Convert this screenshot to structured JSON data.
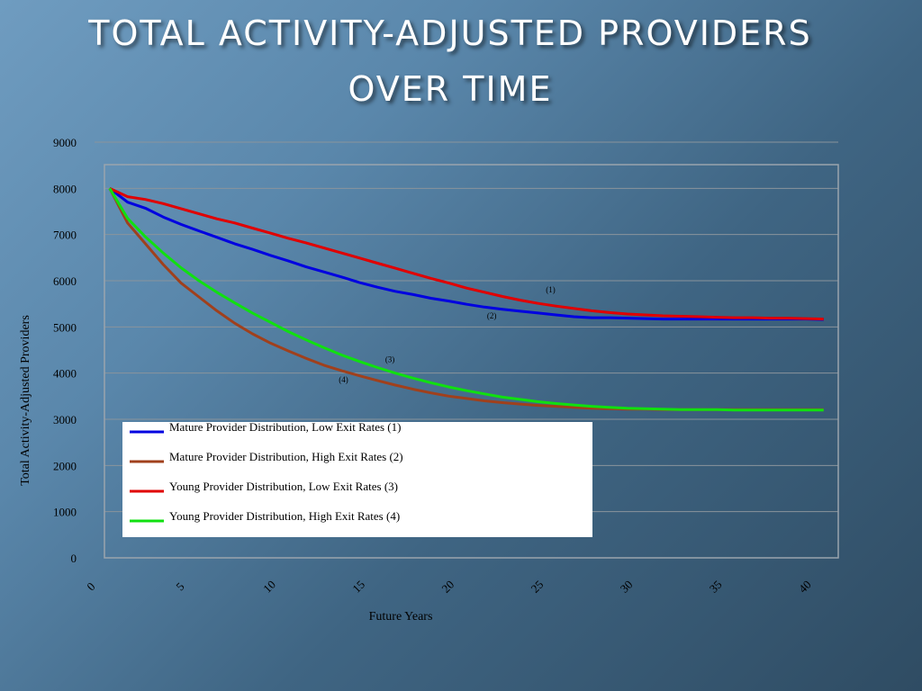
{
  "slide": {
    "title_line1": "TOTAL ACTIVITY-ADJUSTED PROVIDERS",
    "title_line2": "OVER TIME"
  },
  "chart_data": {
    "type": "line",
    "title": "TOTAL ACTIVITY-ADJUSTED PROVIDERS OVER TIME",
    "xlabel": "Future Years",
    "ylabel": "Total Activity-Adjusted Providers",
    "xlim": [
      0,
      41
    ],
    "ylim": [
      0,
      9000
    ],
    "x_ticks": [
      0,
      5,
      10,
      15,
      20,
      25,
      30,
      35,
      40
    ],
    "y_ticks": [
      0,
      1000,
      2000,
      3000,
      4000,
      5000,
      6000,
      7000,
      8000,
      9000
    ],
    "grid": "horizontal",
    "legend_placement": "bottom-left",
    "x": [
      1,
      2,
      3,
      4,
      5,
      6,
      7,
      8,
      9,
      10,
      11,
      12,
      13,
      14,
      15,
      16,
      17,
      18,
      19,
      20,
      21,
      22,
      23,
      24,
      25,
      26,
      27,
      28,
      29,
      30,
      31,
      32,
      33,
      34,
      35,
      36,
      37,
      38,
      39,
      40,
      41
    ],
    "series": [
      {
        "name": "Mature Provider Distribution, Low Exit Rates (1)",
        "color": "#0000e0",
        "values": [
          8000,
          7700,
          7570,
          7380,
          7220,
          7080,
          6940,
          6800,
          6680,
          6550,
          6430,
          6300,
          6190,
          6080,
          5960,
          5860,
          5770,
          5700,
          5620,
          5560,
          5490,
          5430,
          5380,
          5340,
          5300,
          5260,
          5220,
          5200,
          5200,
          5190,
          5180,
          5170,
          5170,
          5170,
          5170,
          5170,
          5170,
          5170,
          5170,
          5170,
          5160
        ]
      },
      {
        "name": "Mature Provider Distribution, High Exit Rates (2)",
        "color": "#a0401c",
        "values": [
          8000,
          7250,
          6800,
          6350,
          5950,
          5650,
          5350,
          5080,
          4850,
          4650,
          4480,
          4320,
          4170,
          4050,
          3940,
          3840,
          3740,
          3650,
          3570,
          3500,
          3450,
          3400,
          3360,
          3330,
          3300,
          3280,
          3260,
          3240,
          3230,
          3220,
          3220,
          3210,
          3210,
          3210,
          3210,
          3210,
          3210,
          3210,
          3210,
          3210,
          3210
        ]
      },
      {
        "name": "Young Provider Distribution, Low Exit Rates (3)",
        "color": "#e00000",
        "values": [
          8000,
          7820,
          7760,
          7670,
          7560,
          7450,
          7340,
          7250,
          7140,
          7030,
          6920,
          6820,
          6710,
          6600,
          6490,
          6380,
          6270,
          6160,
          6050,
          5950,
          5840,
          5750,
          5660,
          5580,
          5510,
          5450,
          5400,
          5350,
          5310,
          5280,
          5260,
          5240,
          5230,
          5220,
          5210,
          5200,
          5200,
          5190,
          5190,
          5180,
          5170
        ]
      },
      {
        "name": "Young Provider Distribution, High Exit Rates (4)",
        "color": "#10e010",
        "values": [
          8000,
          7350,
          6950,
          6600,
          6280,
          6000,
          5750,
          5520,
          5300,
          5100,
          4900,
          4720,
          4550,
          4390,
          4250,
          4120,
          4000,
          3890,
          3790,
          3700,
          3620,
          3550,
          3480,
          3430,
          3380,
          3340,
          3310,
          3280,
          3260,
          3240,
          3230,
          3220,
          3210,
          3210,
          3210,
          3200,
          3200,
          3200,
          3200,
          3200,
          3200
        ]
      }
    ],
    "annotations": [
      {
        "text": "(1)",
        "x": 25.7,
        "y": 5750
      },
      {
        "text": "(2)",
        "x": 22.4,
        "y": 5180
      },
      {
        "text": "(3)",
        "x": 16.7,
        "y": 4240
      },
      {
        "text": "(4)",
        "x": 14.1,
        "y": 3800
      }
    ]
  }
}
